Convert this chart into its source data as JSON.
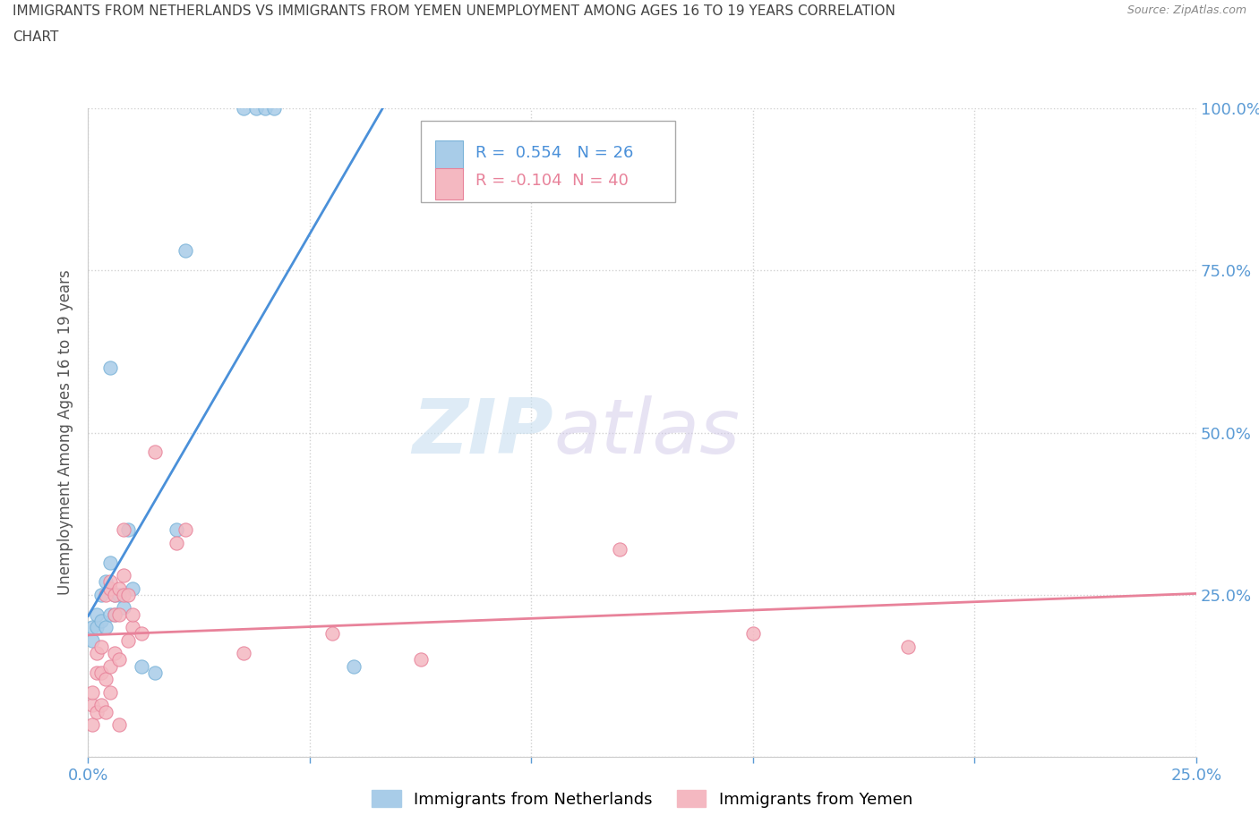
{
  "title_line1": "IMMIGRANTS FROM NETHERLANDS VS IMMIGRANTS FROM YEMEN UNEMPLOYMENT AMONG AGES 16 TO 19 YEARS CORRELATION",
  "title_line2": "CHART",
  "source": "Source: ZipAtlas.com",
  "ylabel": "Unemployment Among Ages 16 to 19 years",
  "xmin": 0.0,
  "xmax": 0.25,
  "ymin": 0.0,
  "ymax": 1.0,
  "netherlands_R": 0.554,
  "netherlands_N": 26,
  "yemen_R": -0.104,
  "yemen_N": 40,
  "netherlands_color": "#a8cce8",
  "yemen_color": "#f4b8c1",
  "netherlands_line_color": "#4a90d9",
  "yemen_line_color": "#e8829a",
  "watermark_zip": "ZIP",
  "watermark_atlas": "atlas",
  "netherlands_x": [
    0.001,
    0.001,
    0.002,
    0.002,
    0.003,
    0.003,
    0.004,
    0.004,
    0.005,
    0.005,
    0.005,
    0.006,
    0.006,
    0.007,
    0.008,
    0.009,
    0.01,
    0.012,
    0.015,
    0.02,
    0.022,
    0.035,
    0.038,
    0.04,
    0.042,
    0.06
  ],
  "netherlands_y": [
    0.18,
    0.2,
    0.2,
    0.22,
    0.21,
    0.25,
    0.2,
    0.27,
    0.22,
    0.3,
    0.6,
    0.22,
    0.25,
    0.25,
    0.23,
    0.35,
    0.26,
    0.14,
    0.13,
    0.35,
    0.78,
    1.0,
    1.0,
    1.0,
    1.0,
    0.14
  ],
  "yemen_x": [
    0.001,
    0.001,
    0.001,
    0.002,
    0.002,
    0.002,
    0.003,
    0.003,
    0.003,
    0.004,
    0.004,
    0.004,
    0.005,
    0.005,
    0.005,
    0.005,
    0.006,
    0.006,
    0.006,
    0.007,
    0.007,
    0.007,
    0.007,
    0.008,
    0.008,
    0.008,
    0.009,
    0.009,
    0.01,
    0.01,
    0.012,
    0.015,
    0.02,
    0.022,
    0.035,
    0.055,
    0.075,
    0.12,
    0.15,
    0.185
  ],
  "yemen_y": [
    0.05,
    0.08,
    0.1,
    0.07,
    0.13,
    0.16,
    0.08,
    0.13,
    0.17,
    0.07,
    0.12,
    0.25,
    0.1,
    0.14,
    0.26,
    0.27,
    0.16,
    0.22,
    0.25,
    0.05,
    0.15,
    0.22,
    0.26,
    0.25,
    0.28,
    0.35,
    0.18,
    0.25,
    0.2,
    0.22,
    0.19,
    0.47,
    0.33,
    0.35,
    0.16,
    0.19,
    0.15,
    0.32,
    0.19,
    0.17
  ],
  "legend_netherlands_label": "Immigrants from Netherlands",
  "legend_yemen_label": "Immigrants from Yemen",
  "background_color": "#ffffff",
  "grid_color": "#cccccc"
}
